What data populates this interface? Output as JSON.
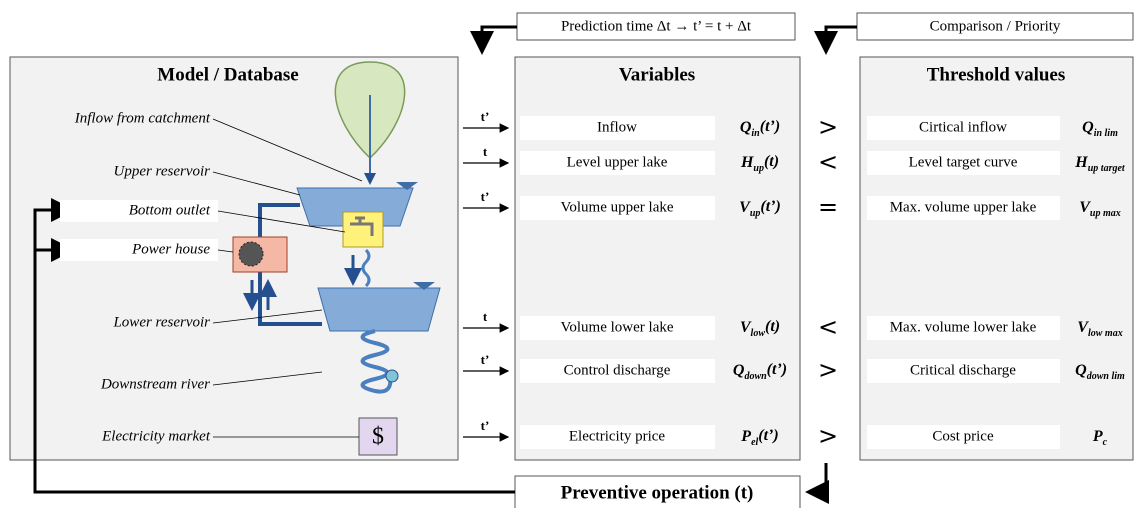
{
  "top_labels": {
    "prediction": "Prediction time Δt → t’ = t + Δt",
    "comparison": "Comparison / Priority"
  },
  "model": {
    "title": "Model / Database",
    "labels": [
      "Inflow from catchment",
      "Upper reservoir",
      "Bottom outlet",
      "Power house",
      "Lower reservoir",
      "Downstream river",
      "Electricity market"
    ],
    "market_symbol": "$"
  },
  "variables": {
    "title": "Variables",
    "rows": [
      {
        "time": "t’",
        "name": "Inflow",
        "symbol": {
          "base": "Q",
          "sub": "in",
          "arg": "(t’)"
        }
      },
      {
        "time": "t",
        "name": "Level upper lake",
        "symbol": {
          "base": "H",
          "sub": "up",
          "arg": "(t)"
        }
      },
      {
        "time": "t’",
        "name": "Volume upper lake",
        "symbol": {
          "base": "V",
          "sub": "up",
          "arg": "(t’)"
        }
      },
      {
        "time": "t",
        "name": "Volume lower lake",
        "symbol": {
          "base": "V",
          "sub": "low",
          "arg": "(t)"
        }
      },
      {
        "time": "t’",
        "name": "Control discharge",
        "symbol": {
          "base": "Q",
          "sub": "down",
          "arg": "(t’)"
        }
      },
      {
        "time": "t’",
        "name": "Electricity price",
        "symbol": {
          "base": "P",
          "sub": "el",
          "arg": "(t’)"
        }
      }
    ]
  },
  "operators": [
    ">",
    "<",
    "=",
    "<",
    ">",
    ">"
  ],
  "thresholds": {
    "title": "Threshold values",
    "rows": [
      {
        "name": "Cirtical inflow",
        "symbol": {
          "base": "Q",
          "sub": "in lim"
        }
      },
      {
        "name": "Level target curve",
        "symbol": {
          "base": "H",
          "sub": "up target"
        }
      },
      {
        "name": "Max. volume upper lake",
        "symbol": {
          "base": "V",
          "sub": "up max"
        }
      },
      {
        "name": "Max. volume lower lake",
        "symbol": {
          "base": "V",
          "sub": "low max"
        }
      },
      {
        "name": "Critical discharge",
        "symbol": {
          "base": "Q",
          "sub": "down lim"
        }
      },
      {
        "name": "Cost price",
        "symbol": {
          "base": "P",
          "sub": "c"
        }
      }
    ]
  },
  "output": "Preventive operation (t)"
}
